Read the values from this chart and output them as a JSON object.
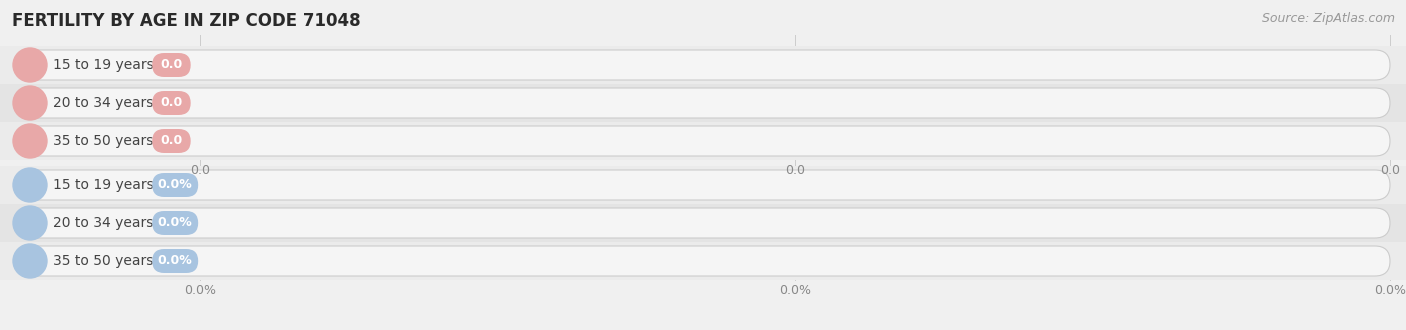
{
  "title": "FERTILITY BY AGE IN ZIP CODE 71048",
  "source": "Source: ZipAtlas.com",
  "background_color": "#f0f0f0",
  "title_color": "#2a2a2a",
  "source_color": "#999999",
  "top_section": {
    "categories": [
      "15 to 19 years",
      "20 to 34 years",
      "35 to 50 years"
    ],
    "values": [
      0.0,
      0.0,
      0.0
    ],
    "bar_color": "#e8a8a8",
    "bar_bg_color": "#e8e8e8",
    "value_badge_color": "#e8a8a8",
    "tick_labels": [
      "0.0",
      "0.0",
      "0.0"
    ]
  },
  "bottom_section": {
    "categories": [
      "15 to 19 years",
      "20 to 34 years",
      "35 to 50 years"
    ],
    "values": [
      0.0,
      0.0,
      0.0
    ],
    "bar_color": "#a8c4e0",
    "bar_bg_color": "#e8e8e8",
    "value_badge_color": "#a8c4e0",
    "tick_labels": [
      "0.0%",
      "0.0%",
      "0.0%"
    ]
  },
  "title_fontsize": 12,
  "source_fontsize": 9,
  "bar_label_fontsize": 10,
  "value_fontsize": 9,
  "tick_fontsize": 9
}
